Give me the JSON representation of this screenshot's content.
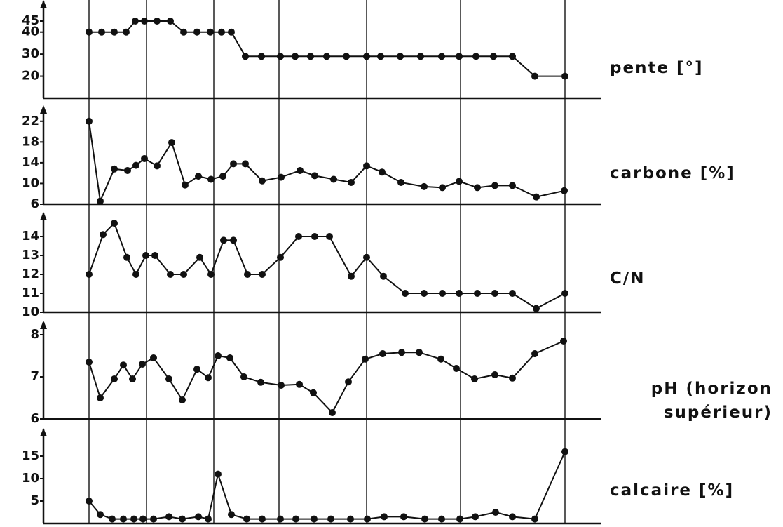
{
  "chart_data": [
    {
      "type": "line",
      "title": "pente [°]",
      "color": "#111111",
      "categories": [
        null,
        null,
        null,
        null,
        null,
        null,
        null,
        null,
        null,
        null,
        null,
        null,
        null,
        null,
        null,
        null,
        null,
        null,
        null,
        null,
        null,
        null,
        null,
        null,
        null,
        null,
        null,
        null,
        null,
        null,
        null
      ],
      "values": [
        40,
        40,
        40,
        40,
        45,
        45,
        45,
        45,
        40,
        40,
        40,
        40,
        40,
        29,
        29,
        29,
        29,
        29,
        29,
        29,
        29,
        29,
        29,
        29,
        29,
        29,
        29,
        29,
        29,
        20,
        20
      ],
      "ylim": [
        10,
        52
      ],
      "yticks": [
        20,
        30,
        40,
        45
      ]
    },
    {
      "type": "line",
      "title": "carbone [%]",
      "color": "#111111",
      "categories": [
        null,
        null,
        null,
        null,
        null,
        null,
        null,
        null,
        null,
        null,
        null,
        null,
        null,
        null,
        null,
        null,
        null,
        null,
        null,
        null,
        null,
        null,
        null,
        null,
        null,
        null,
        null,
        null,
        null,
        null,
        null
      ],
      "values": [
        22,
        6.6,
        12.8,
        12.5,
        13.5,
        14.8,
        13.4,
        17.9,
        9.7,
        11.4,
        10.8,
        11.4,
        13.8,
        13.8,
        10.5,
        11.2,
        12.5,
        11.5,
        10.8,
        10.2,
        13.4,
        12.2,
        10.2,
        9.4,
        9.2,
        10.4,
        9.2,
        9.6,
        9.6,
        7.4,
        8.6
      ],
      "ylim": [
        6,
        24
      ],
      "yticks": [
        6,
        10,
        14,
        18,
        22
      ]
    },
    {
      "type": "line",
      "title": "C/N",
      "color": "#111111",
      "categories": [
        null,
        null,
        null,
        null,
        null,
        null,
        null,
        null,
        null,
        null,
        null,
        null,
        null,
        null,
        null,
        null,
        null,
        null,
        null,
        null,
        null,
        null,
        null,
        null,
        null,
        null,
        null,
        null,
        null,
        null,
        null
      ],
      "values": [
        12,
        14.1,
        14.7,
        12.9,
        12,
        13,
        13,
        12,
        12,
        12.9,
        12,
        13.8,
        13.8,
        12,
        12,
        12.9,
        14,
        14,
        14,
        11.9,
        12.9,
        11.9,
        11,
        11,
        11,
        11,
        11,
        11,
        11,
        10.2,
        11
      ],
      "ylim": [
        10,
        15
      ],
      "yticks": [
        10,
        11,
        12,
        13,
        14
      ]
    },
    {
      "type": "line",
      "title": "pH (horizon supérieur)",
      "color": "#111111",
      "categories": [
        null,
        null,
        null,
        null,
        null,
        null,
        null,
        null,
        null,
        null,
        null,
        null,
        null,
        null,
        null,
        null,
        null,
        null,
        null,
        null,
        null,
        null,
        null,
        null,
        null,
        null,
        null,
        null,
        null,
        null,
        null
      ],
      "values": [
        7.35,
        6.5,
        6.95,
        7.28,
        6.95,
        7.3,
        7.45,
        6.95,
        6.45,
        7.18,
        6.98,
        7.5,
        7.45,
        7,
        6.87,
        6.8,
        6.82,
        6.62,
        6.15,
        6.88,
        7.42,
        7.55,
        7.58,
        7.58,
        7.42,
        7.2,
        6.95,
        7.05,
        6.97,
        7.55,
        7.85
      ],
      "ylim": [
        6,
        8.2
      ],
      "yticks": [
        6,
        7,
        8
      ]
    },
    {
      "type": "line",
      "title": "calcaire [%]",
      "color": "#111111",
      "categories": [
        null,
        null,
        null,
        null,
        null,
        null,
        null,
        null,
        null,
        null,
        null,
        null,
        null,
        null,
        null,
        null,
        null,
        null,
        null,
        null,
        null,
        null,
        null,
        null,
        null,
        null,
        null,
        null,
        null,
        null,
        null
      ],
      "values": [
        5,
        2,
        1,
        1,
        1,
        1,
        1,
        1.5,
        1,
        1.5,
        1,
        11,
        2,
        1,
        1,
        1,
        1,
        1,
        1,
        1,
        1,
        1.5,
        1.5,
        1,
        1,
        1,
        1.5,
        2.5,
        1.5,
        1,
        16
      ],
      "ylim": [
        0,
        20
      ],
      "yticks": [
        5,
        10,
        15
      ]
    }
  ]
}
